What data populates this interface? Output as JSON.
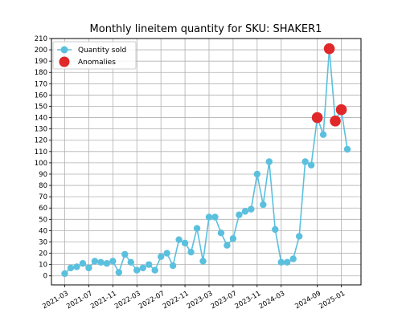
{
  "chart_data": {
    "type": "line",
    "title": "Monthly lineitem quantity for SKU: SHAKER1",
    "xlabel": "",
    "ylabel": "",
    "ylim": [
      -8,
      210
    ],
    "yticks": [
      0,
      10,
      20,
      30,
      40,
      50,
      60,
      70,
      80,
      90,
      100,
      110,
      120,
      130,
      140,
      150,
      160,
      170,
      180,
      190,
      200,
      210
    ],
    "xtick_labels": [
      "2021-03",
      "2021-07",
      "2021-11",
      "2022-03",
      "2022-07",
      "2022-11",
      "2023-03",
      "2023-07",
      "2023-11",
      "2024-03",
      "2024-09",
      "2025-01"
    ],
    "grid": true,
    "legend_position": "top-left",
    "colors": {
      "line": "#5bc0de",
      "anomaly": "#e0282a",
      "grid": "#b0b0b0"
    },
    "series": [
      {
        "name": "Quantity sold",
        "values": [
          2,
          7,
          8,
          11,
          7,
          13,
          12,
          11,
          13,
          3,
          19,
          12,
          5,
          7,
          10,
          5,
          17,
          20,
          9,
          32,
          29,
          21,
          42,
          13,
          52,
          52,
          38,
          27,
          33,
          54,
          57,
          59,
          90,
          63,
          101,
          41,
          12,
          12,
          15,
          35,
          101,
          98,
          140,
          125,
          201,
          137,
          147,
          112
        ]
      }
    ],
    "anomalies": {
      "name": "Anomalies",
      "indices": [
        42,
        44,
        45,
        46
      ],
      "values": [
        140,
        201,
        137,
        147
      ]
    }
  }
}
